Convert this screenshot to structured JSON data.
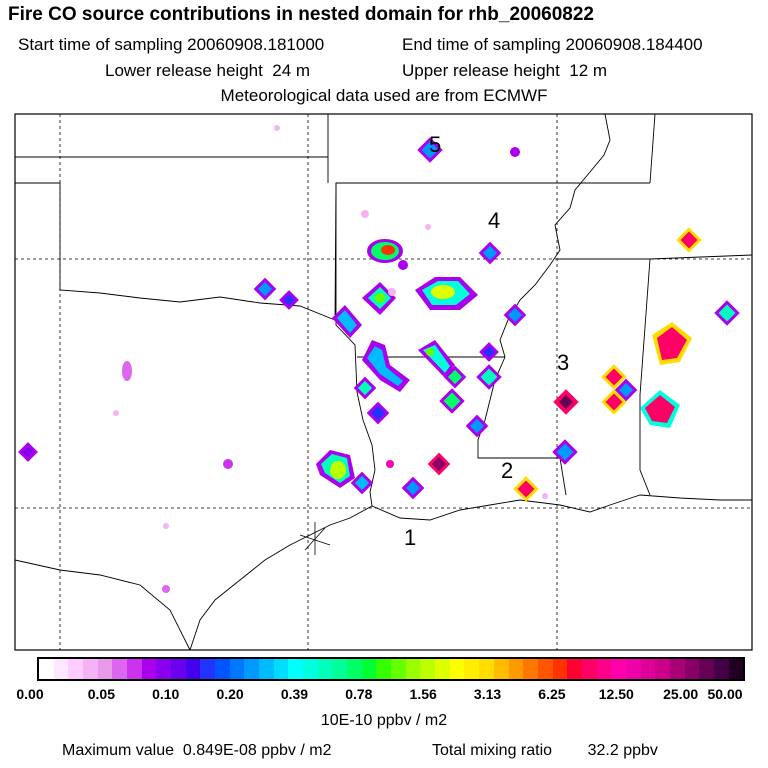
{
  "title": "Fire CO source contributions in nested domain for rhb_20060822",
  "start_label": "Start time of sampling",
  "start_value": "20060908.181000",
  "end_label": "End time of sampling",
  "end_value": "20060908.184400",
  "lower_label": "Lower release height",
  "lower_value": "24 m",
  "upper_label": "Upper release height",
  "upper_value": "12 m",
  "met_line": "Meteorological data used are from ECMWF",
  "map_labels": [
    "5",
    "4",
    "3",
    "2",
    "1"
  ],
  "colorbar": {
    "ticks": [
      "0.00",
      "0.05",
      "0.10",
      "0.20",
      "0.39",
      "0.78",
      "1.56",
      "3.13",
      "6.25",
      "12.50",
      "25.00",
      "50.00"
    ],
    "units": "10E-10 ppbv / m2",
    "colors": [
      "#ffffff",
      "#ffe6ff",
      "#ffccff",
      "#f5b3f5",
      "#e89ae8",
      "#dd66ee",
      "#cc33ee",
      "#aa00ee",
      "#8800ee",
      "#6a00ee",
      "#4400ee",
      "#2233ff",
      "#0055ff",
      "#0077ff",
      "#0099ff",
      "#00bbff",
      "#00ddff",
      "#00ffff",
      "#00ffdd",
      "#00ffbb",
      "#00ff99",
      "#00ff66",
      "#00ff33",
      "#33ff00",
      "#66ff00",
      "#99ff00",
      "#bbff00",
      "#ddff00",
      "#ffff00",
      "#ffee00",
      "#ffdd00",
      "#ffbb00",
      "#ff9900",
      "#ff7700",
      "#ff5500",
      "#ff3300",
      "#ff0033",
      "#ff0066",
      "#ff0088",
      "#ff00aa",
      "#ee00aa",
      "#dd0099",
      "#cc0088",
      "#aa0077",
      "#880066",
      "#660055",
      "#440044",
      "#220022"
    ]
  },
  "max_label": "Maximum value",
  "max_value": "0.849E-08 ppbv / m2",
  "total_label": "Total mixing ratio",
  "total_value": "32.2 ppbv"
}
